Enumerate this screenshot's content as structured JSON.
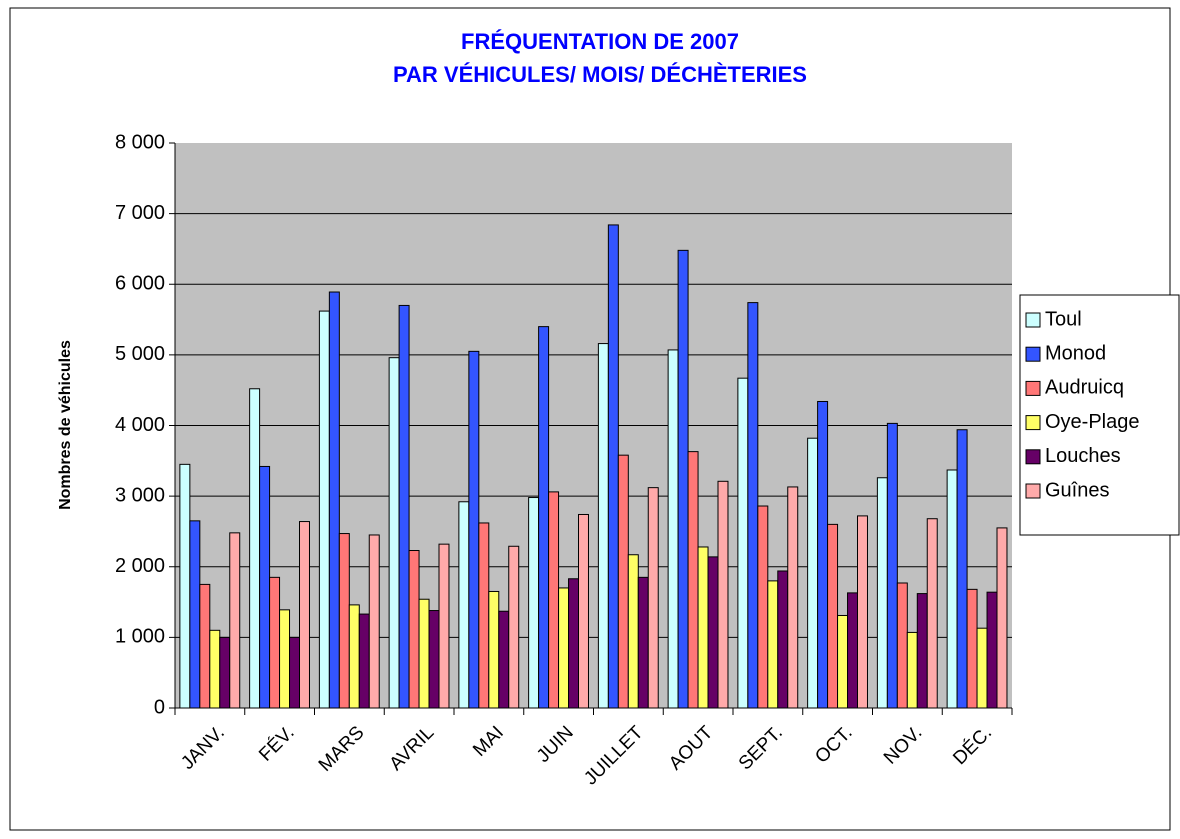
{
  "chart_data": {
    "type": "bar",
    "title": [
      "FRÉQUENTATION DE 2007",
      "PAR VÉHICULES/ MOIS/ DÉCHÈTERIES"
    ],
    "y_label": "Nombres de véhicules",
    "categories": [
      "JANV.",
      "FÉV.",
      "MARS",
      "AVRIL",
      "MAI",
      "JUIN",
      "JUILLET",
      "AOUT",
      "SEPT.",
      "OCT.",
      "NOV.",
      "DÉC."
    ],
    "series": [
      {
        "name": "Toul",
        "color": "#ccffff",
        "values": [
          3450,
          4520,
          5620,
          4960,
          2920,
          2980,
          5160,
          5070,
          4670,
          3820,
          3260,
          3370
        ]
      },
      {
        "name": "Monod",
        "color": "#3355ff",
        "values": [
          2650,
          3420,
          5890,
          5700,
          5050,
          5400,
          6840,
          6480,
          5740,
          4340,
          4030,
          3940
        ]
      },
      {
        "name": "Audruicq",
        "color": "#ff7777",
        "values": [
          1750,
          1850,
          2470,
          2230,
          2620,
          3060,
          3580,
          3630,
          2860,
          2600,
          1770,
          1680
        ]
      },
      {
        "name": "Oye-Plage",
        "color": "#ffff66",
        "values": [
          1100,
          1390,
          1460,
          1540,
          1650,
          1700,
          2170,
          2280,
          1800,
          1310,
          1070,
          1130
        ]
      },
      {
        "name": "Louches",
        "color": "#660066",
        "values": [
          1000,
          1000,
          1330,
          1380,
          1370,
          1830,
          1850,
          2140,
          1940,
          1630,
          1620,
          1640
        ]
      },
      {
        "name": "Guînes",
        "color": "#ffaaaa",
        "values": [
          2480,
          2640,
          2450,
          2320,
          2290,
          2740,
          3120,
          3210,
          3130,
          2720,
          2680,
          2550
        ]
      }
    ],
    "ylim": [
      0,
      8000
    ],
    "yticks": [
      0,
      {
        "value": 1000,
        "label": "1 000"
      },
      {
        "value": 2000,
        "label": "2 000"
      },
      {
        "value": 3000,
        "label": "3 000"
      },
      {
        "value": 4000,
        "label": "4 000"
      },
      {
        "value": 5000,
        "label": "5 000"
      },
      {
        "value": 6000,
        "label": "6 000"
      },
      {
        "value": 7000,
        "label": "7 000"
      },
      {
        "value": 8000,
        "label": "8 000"
      }
    ],
    "grid": true,
    "legend": "right"
  }
}
